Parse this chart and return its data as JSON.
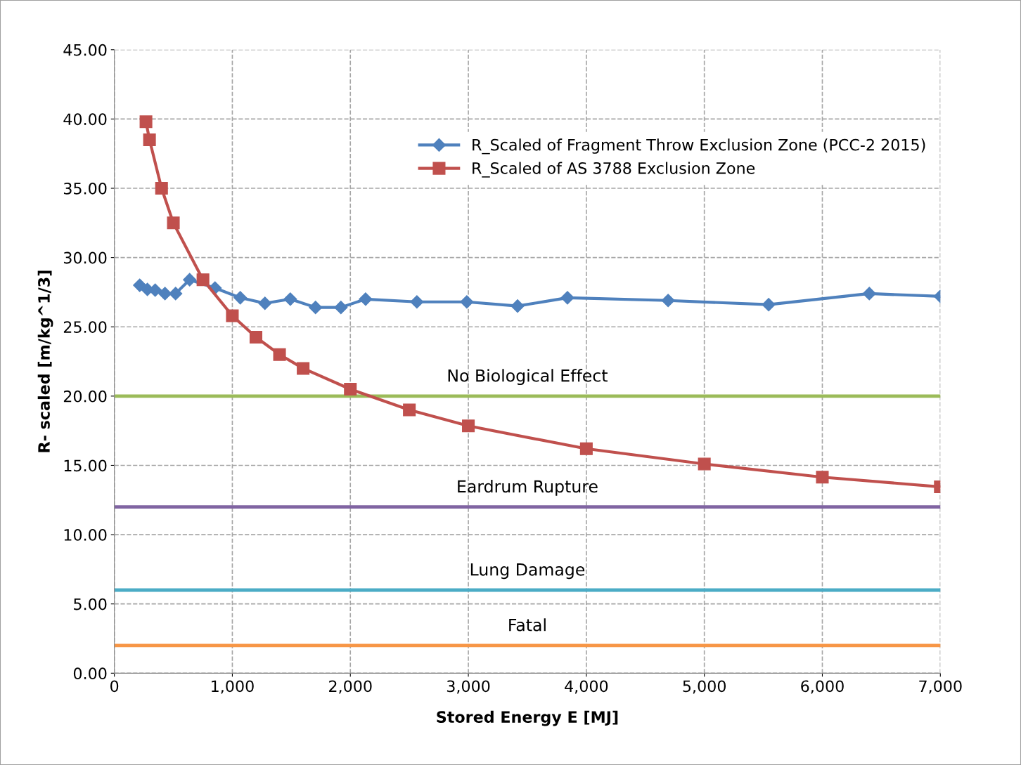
{
  "chart_data": {
    "type": "line",
    "xlabel": "Stored Energy E [MJ]",
    "ylabel": "R- scaled [m/kg^1/3]",
    "xlim": [
      0,
      7000
    ],
    "ylim": [
      0,
      45
    ],
    "xticks": [
      0,
      {
        "value": 1000,
        "label": "1,000"
      },
      {
        "value": 2000,
        "label": "2,000"
      },
      {
        "value": 3000,
        "label": "3,000"
      },
      {
        "value": 4000,
        "label": "4,000"
      },
      {
        "value": 5000,
        "label": "5,000"
      },
      {
        "value": 6000,
        "label": "6,000"
      },
      {
        "value": 7000,
        "label": "7,000"
      }
    ],
    "yticks": [
      {
        "value": 0,
        "label": "0.00"
      },
      {
        "value": 5,
        "label": "5.00"
      },
      {
        "value": 10,
        "label": "10.00"
      },
      {
        "value": 15,
        "label": "15.00"
      },
      {
        "value": 20,
        "label": "20.00"
      },
      {
        "value": 25,
        "label": "25.00"
      },
      {
        "value": 30,
        "label": "30.00"
      },
      {
        "value": 35,
        "label": "35.00"
      },
      {
        "value": 40,
        "label": "40.00"
      },
      {
        "value": 45,
        "label": "45.00"
      }
    ],
    "grid": true,
    "legend": "top right",
    "line_style": "solid",
    "series": [
      {
        "name": "R_Scaled of Fragment Throw Exclusion Zone (PCC-2 2015)",
        "color": "#4f81bd",
        "marker": "diamond",
        "x": [
          215,
          280,
          346,
          429,
          519,
          638,
          853,
          1067,
          1276,
          1491,
          1705,
          1920,
          2129,
          2564,
          2987,
          3417,
          3840,
          4693,
          5545,
          6398,
          7000
        ],
        "values": [
          28.0,
          27.7,
          27.65,
          27.4,
          27.4,
          28.4,
          27.8,
          27.1,
          26.7,
          27.0,
          26.4,
          26.4,
          27.0,
          26.8,
          26.8,
          26.5,
          27.1,
          26.9,
          26.6,
          27.4,
          27.2
        ]
      },
      {
        "name": "R_Scaled of AS 3788 Exclusion Zone",
        "color": "#c0504d",
        "marker": "square",
        "x": [
          268,
          298,
          400,
          500,
          751,
          1000,
          1200,
          1400,
          1600,
          2000,
          2500,
          3000,
          4000,
          5000,
          6000,
          7000
        ],
        "values": [
          39.8,
          38.5,
          35.0,
          32.5,
          28.4,
          25.8,
          24.25,
          23.0,
          22.0,
          20.5,
          19.0,
          17.85,
          16.2,
          15.1,
          14.15,
          13.45
        ]
      }
    ],
    "ref_lines": [
      {
        "axis": "y",
        "value": 20,
        "label": "No Biological Effect",
        "color": "#9bbb59"
      },
      {
        "axis": "y",
        "value": 12,
        "label": "Eardrum Rupture",
        "color": "#8064a2"
      },
      {
        "axis": "y",
        "value": 6,
        "label": "Lung Damage",
        "color": "#4bacc6"
      },
      {
        "axis": "y",
        "value": 2,
        "label": "Fatal",
        "color": "#f79646"
      }
    ]
  }
}
